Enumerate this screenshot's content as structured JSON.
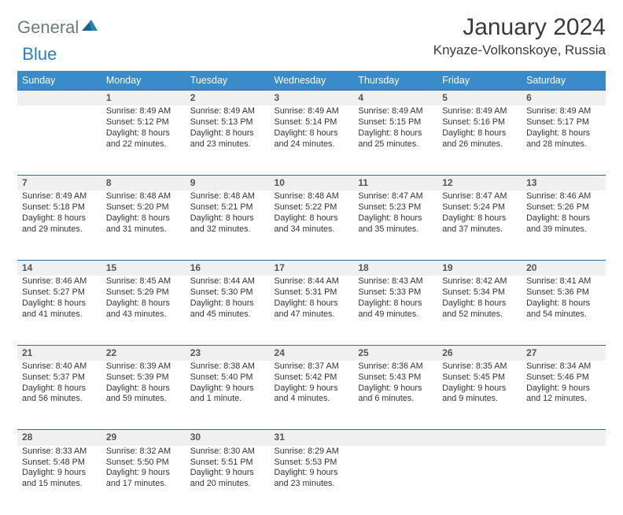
{
  "brand": {
    "part1": "General",
    "part2": "Blue"
  },
  "title": "January 2024",
  "location": "Knyaze-Volkonskoye, Russia",
  "colors": {
    "header_bg": "#3a8bc9",
    "header_text": "#ffffff",
    "daynum_bg": "#eef0f2",
    "rule": "#2e6da4",
    "body_text": "#333333",
    "logo_gray": "#6c7a80",
    "logo_blue": "#2a7fba",
    "page_bg": "#ffffff"
  },
  "weekdays": [
    "Sunday",
    "Monday",
    "Tuesday",
    "Wednesday",
    "Thursday",
    "Friday",
    "Saturday"
  ],
  "weeks": [
    {
      "nums": [
        "",
        "1",
        "2",
        "3",
        "4",
        "5",
        "6"
      ],
      "cells": [
        null,
        {
          "sunrise": "Sunrise: 8:49 AM",
          "sunset": "Sunset: 5:12 PM",
          "daylight": "Daylight: 8 hours and 22 minutes."
        },
        {
          "sunrise": "Sunrise: 8:49 AM",
          "sunset": "Sunset: 5:13 PM",
          "daylight": "Daylight: 8 hours and 23 minutes."
        },
        {
          "sunrise": "Sunrise: 8:49 AM",
          "sunset": "Sunset: 5:14 PM",
          "daylight": "Daylight: 8 hours and 24 minutes."
        },
        {
          "sunrise": "Sunrise: 8:49 AM",
          "sunset": "Sunset: 5:15 PM",
          "daylight": "Daylight: 8 hours and 25 minutes."
        },
        {
          "sunrise": "Sunrise: 8:49 AM",
          "sunset": "Sunset: 5:16 PM",
          "daylight": "Daylight: 8 hours and 26 minutes."
        },
        {
          "sunrise": "Sunrise: 8:49 AM",
          "sunset": "Sunset: 5:17 PM",
          "daylight": "Daylight: 8 hours and 28 minutes."
        }
      ]
    },
    {
      "nums": [
        "7",
        "8",
        "9",
        "10",
        "11",
        "12",
        "13"
      ],
      "cells": [
        {
          "sunrise": "Sunrise: 8:49 AM",
          "sunset": "Sunset: 5:18 PM",
          "daylight": "Daylight: 8 hours and 29 minutes."
        },
        {
          "sunrise": "Sunrise: 8:48 AM",
          "sunset": "Sunset: 5:20 PM",
          "daylight": "Daylight: 8 hours and 31 minutes."
        },
        {
          "sunrise": "Sunrise: 8:48 AM",
          "sunset": "Sunset: 5:21 PM",
          "daylight": "Daylight: 8 hours and 32 minutes."
        },
        {
          "sunrise": "Sunrise: 8:48 AM",
          "sunset": "Sunset: 5:22 PM",
          "daylight": "Daylight: 8 hours and 34 minutes."
        },
        {
          "sunrise": "Sunrise: 8:47 AM",
          "sunset": "Sunset: 5:23 PM",
          "daylight": "Daylight: 8 hours and 35 minutes."
        },
        {
          "sunrise": "Sunrise: 8:47 AM",
          "sunset": "Sunset: 5:24 PM",
          "daylight": "Daylight: 8 hours and 37 minutes."
        },
        {
          "sunrise": "Sunrise: 8:46 AM",
          "sunset": "Sunset: 5:26 PM",
          "daylight": "Daylight: 8 hours and 39 minutes."
        }
      ]
    },
    {
      "nums": [
        "14",
        "15",
        "16",
        "17",
        "18",
        "19",
        "20"
      ],
      "cells": [
        {
          "sunrise": "Sunrise: 8:46 AM",
          "sunset": "Sunset: 5:27 PM",
          "daylight": "Daylight: 8 hours and 41 minutes."
        },
        {
          "sunrise": "Sunrise: 8:45 AM",
          "sunset": "Sunset: 5:29 PM",
          "daylight": "Daylight: 8 hours and 43 minutes."
        },
        {
          "sunrise": "Sunrise: 8:44 AM",
          "sunset": "Sunset: 5:30 PM",
          "daylight": "Daylight: 8 hours and 45 minutes."
        },
        {
          "sunrise": "Sunrise: 8:44 AM",
          "sunset": "Sunset: 5:31 PM",
          "daylight": "Daylight: 8 hours and 47 minutes."
        },
        {
          "sunrise": "Sunrise: 8:43 AM",
          "sunset": "Sunset: 5:33 PM",
          "daylight": "Daylight: 8 hours and 49 minutes."
        },
        {
          "sunrise": "Sunrise: 8:42 AM",
          "sunset": "Sunset: 5:34 PM",
          "daylight": "Daylight: 8 hours and 52 minutes."
        },
        {
          "sunrise": "Sunrise: 8:41 AM",
          "sunset": "Sunset: 5:36 PM",
          "daylight": "Daylight: 8 hours and 54 minutes."
        }
      ]
    },
    {
      "nums": [
        "21",
        "22",
        "23",
        "24",
        "25",
        "26",
        "27"
      ],
      "cells": [
        {
          "sunrise": "Sunrise: 8:40 AM",
          "sunset": "Sunset: 5:37 PM",
          "daylight": "Daylight: 8 hours and 56 minutes."
        },
        {
          "sunrise": "Sunrise: 8:39 AM",
          "sunset": "Sunset: 5:39 PM",
          "daylight": "Daylight: 8 hours and 59 minutes."
        },
        {
          "sunrise": "Sunrise: 8:38 AM",
          "sunset": "Sunset: 5:40 PM",
          "daylight": "Daylight: 9 hours and 1 minute."
        },
        {
          "sunrise": "Sunrise: 8:37 AM",
          "sunset": "Sunset: 5:42 PM",
          "daylight": "Daylight: 9 hours and 4 minutes."
        },
        {
          "sunrise": "Sunrise: 8:36 AM",
          "sunset": "Sunset: 5:43 PM",
          "daylight": "Daylight: 9 hours and 6 minutes."
        },
        {
          "sunrise": "Sunrise: 8:35 AM",
          "sunset": "Sunset: 5:45 PM",
          "daylight": "Daylight: 9 hours and 9 minutes."
        },
        {
          "sunrise": "Sunrise: 8:34 AM",
          "sunset": "Sunset: 5:46 PM",
          "daylight": "Daylight: 9 hours and 12 minutes."
        }
      ]
    },
    {
      "nums": [
        "28",
        "29",
        "30",
        "31",
        "",
        "",
        ""
      ],
      "cells": [
        {
          "sunrise": "Sunrise: 8:33 AM",
          "sunset": "Sunset: 5:48 PM",
          "daylight": "Daylight: 9 hours and 15 minutes."
        },
        {
          "sunrise": "Sunrise: 8:32 AM",
          "sunset": "Sunset: 5:50 PM",
          "daylight": "Daylight: 9 hours and 17 minutes."
        },
        {
          "sunrise": "Sunrise: 8:30 AM",
          "sunset": "Sunset: 5:51 PM",
          "daylight": "Daylight: 9 hours and 20 minutes."
        },
        {
          "sunrise": "Sunrise: 8:29 AM",
          "sunset": "Sunset: 5:53 PM",
          "daylight": "Daylight: 9 hours and 23 minutes."
        },
        null,
        null,
        null
      ]
    }
  ]
}
